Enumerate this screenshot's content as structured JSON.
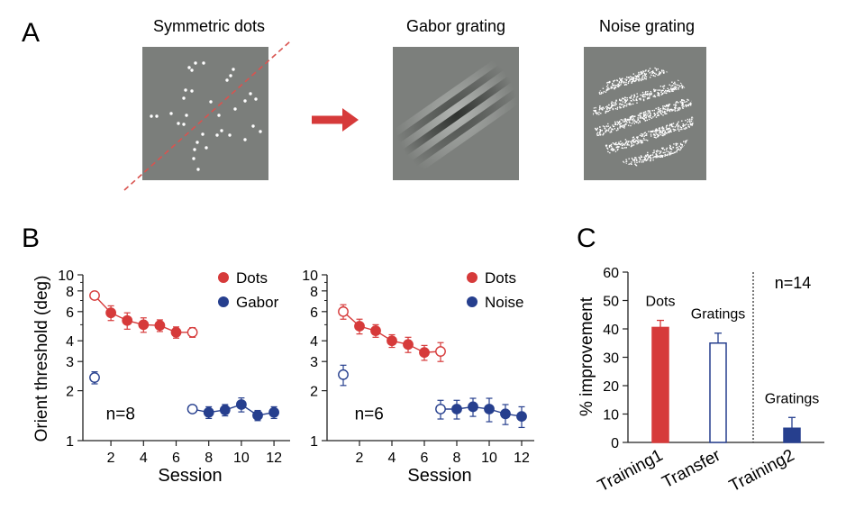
{
  "panel_labels": {
    "a": "A",
    "b": "B",
    "c": "C"
  },
  "stimuli": {
    "dots_title": "Symmetric dots",
    "gabor_title": "Gabor grating",
    "noise_title": "Noise grating"
  },
  "colors": {
    "red": "#d63a3a",
    "blue": "#263f8e",
    "gray": "#7c7f7c"
  },
  "chart_data": [
    {
      "type": "line",
      "panel": "B-left",
      "xlabel": "Session",
      "ylabel": "Orient threshold (deg)",
      "y_scale": "log",
      "ylim": [
        1,
        10
      ],
      "y_ticks": [
        "1",
        "2",
        "3",
        "4",
        "6",
        "8",
        "10"
      ],
      "x_ticks": [
        "2",
        "4",
        "6",
        "8",
        "10",
        "12"
      ],
      "annotation": "n=8",
      "legend": [
        "Dots",
        "Gabor"
      ],
      "series": [
        {
          "name": "Dots",
          "color": "#d63a3a",
          "x": [
            1,
            2,
            3,
            4,
            5,
            6,
            7
          ],
          "y": [
            7.5,
            5.9,
            5.3,
            5.0,
            4.95,
            4.5,
            4.5
          ],
          "err": [
            0.3,
            0.6,
            0.6,
            0.5,
            0.4,
            0.35,
            0.3
          ],
          "pre": [
            1
          ],
          "post": [
            7
          ]
        },
        {
          "name": "Gabor",
          "color": "#263f8e",
          "x": [
            1
          ],
          "y": [
            2.4
          ],
          "err": [
            0.2
          ],
          "pre": [
            1
          ],
          "post": []
        },
        {
          "name": "Gabor-train",
          "color": "#263f8e",
          "x": [
            7,
            8,
            9,
            10,
            11,
            12
          ],
          "y": [
            1.55,
            1.48,
            1.53,
            1.65,
            1.42,
            1.48
          ],
          "err": [
            0.05,
            0.12,
            0.12,
            0.16,
            0.1,
            0.12
          ],
          "pre": [
            7
          ],
          "post": []
        }
      ]
    },
    {
      "type": "line",
      "panel": "B-right",
      "xlabel": "Session",
      "y_scale": "log",
      "ylim": [
        1,
        10
      ],
      "y_ticks": [
        "1",
        "2",
        "3",
        "4",
        "6",
        "8",
        "10"
      ],
      "x_ticks": [
        "2",
        "4",
        "6",
        "8",
        "10",
        "12"
      ],
      "annotation": "n=6",
      "legend": [
        "Dots",
        "Noise"
      ],
      "series": [
        {
          "name": "Dots",
          "color": "#d63a3a",
          "x": [
            1,
            2,
            3,
            4,
            5,
            6,
            7
          ],
          "y": [
            6.0,
            4.9,
            4.6,
            4.0,
            3.8,
            3.4,
            3.45
          ],
          "err": [
            0.6,
            0.5,
            0.4,
            0.35,
            0.4,
            0.35,
            0.45
          ],
          "pre": [
            1
          ],
          "post": [
            7
          ]
        },
        {
          "name": "Noise",
          "color": "#263f8e",
          "x": [
            1
          ],
          "y": [
            2.5
          ],
          "err": [
            0.35
          ],
          "pre": [
            1
          ],
          "post": []
        },
        {
          "name": "Noise-train",
          "color": "#263f8e",
          "x": [
            7,
            8,
            9,
            10,
            11,
            12
          ],
          "y": [
            1.55,
            1.55,
            1.6,
            1.55,
            1.45,
            1.4
          ],
          "err": [
            0.2,
            0.2,
            0.2,
            0.25,
            0.2,
            0.2
          ],
          "pre": [
            7
          ],
          "post": []
        }
      ]
    },
    {
      "type": "bar",
      "panel": "C",
      "ylabel": "% improvement",
      "ylim": [
        0,
        60
      ],
      "y_ticks": [
        "0",
        "10",
        "20",
        "30",
        "40",
        "50",
        "60"
      ],
      "categories": [
        "Training1",
        "Transfer",
        "Training2"
      ],
      "values": [
        40.5,
        35,
        5
      ],
      "errors": [
        2.5,
        3.5,
        3.8
      ],
      "fills": [
        "red",
        "open",
        "blue"
      ],
      "bar_labels": [
        "Dots",
        "Gratings",
        "Gratings"
      ],
      "annotation": "n=14"
    }
  ]
}
